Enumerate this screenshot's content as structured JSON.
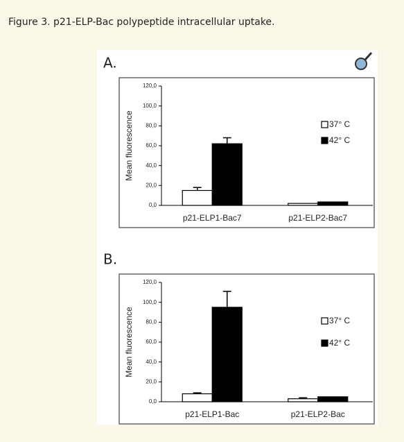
{
  "caption": "Figure 3. p21-ELP-Bac polypeptide intracellular uptake.",
  "chart_data": [
    {
      "type": "bar",
      "title": "A.",
      "y_label": "Mean fluorescence",
      "categories": [
        "p21-ELP1-Bac7",
        "p21-ELP2-Bac7"
      ],
      "series": [
        {
          "name": "37° C",
          "color": "#ffffff",
          "values": [
            15,
            2
          ],
          "errors": [
            3,
            null
          ]
        },
        {
          "name": "42° C",
          "color": "#000000",
          "values": [
            62,
            3.5
          ],
          "errors": [
            6,
            null
          ]
        }
      ],
      "ylim": [
        0,
        120
      ],
      "yticks": [
        {
          "value": 0,
          "label": "0,0"
        },
        {
          "value": 20,
          "label": "20,0"
        },
        {
          "value": 40,
          "label": "40,0"
        },
        {
          "value": 60,
          "label": "60,0"
        },
        {
          "value": 80,
          "label": "80,0"
        },
        {
          "value": 100,
          "label": "100,0"
        },
        {
          "value": 120,
          "label": "120,0"
        }
      ],
      "legend": "right"
    },
    {
      "type": "bar",
      "title": "B.",
      "y_label": "Mean fluorescence",
      "categories": [
        "p21-ELP1-Bac",
        "p21-ELP2-Bac"
      ],
      "series": [
        {
          "name": "37° C",
          "color": "#ffffff",
          "values": [
            8,
            3
          ],
          "errors": [
            1,
            1
          ]
        },
        {
          "name": "42° C",
          "color": "#000000",
          "values": [
            95,
            5
          ],
          "errors": [
            16,
            null
          ]
        }
      ],
      "ylim": [
        0,
        120
      ],
      "yticks": [
        {
          "value": 0,
          "label": "0,0"
        },
        {
          "value": 20,
          "label": "20,0"
        },
        {
          "value": 40,
          "label": "40,0"
        },
        {
          "value": 60,
          "label": "60,0"
        },
        {
          "value": 80,
          "label": "80,0"
        },
        {
          "value": 100,
          "label": "100,0"
        },
        {
          "value": 120,
          "label": "120,0"
        }
      ],
      "legend": "right"
    }
  ]
}
